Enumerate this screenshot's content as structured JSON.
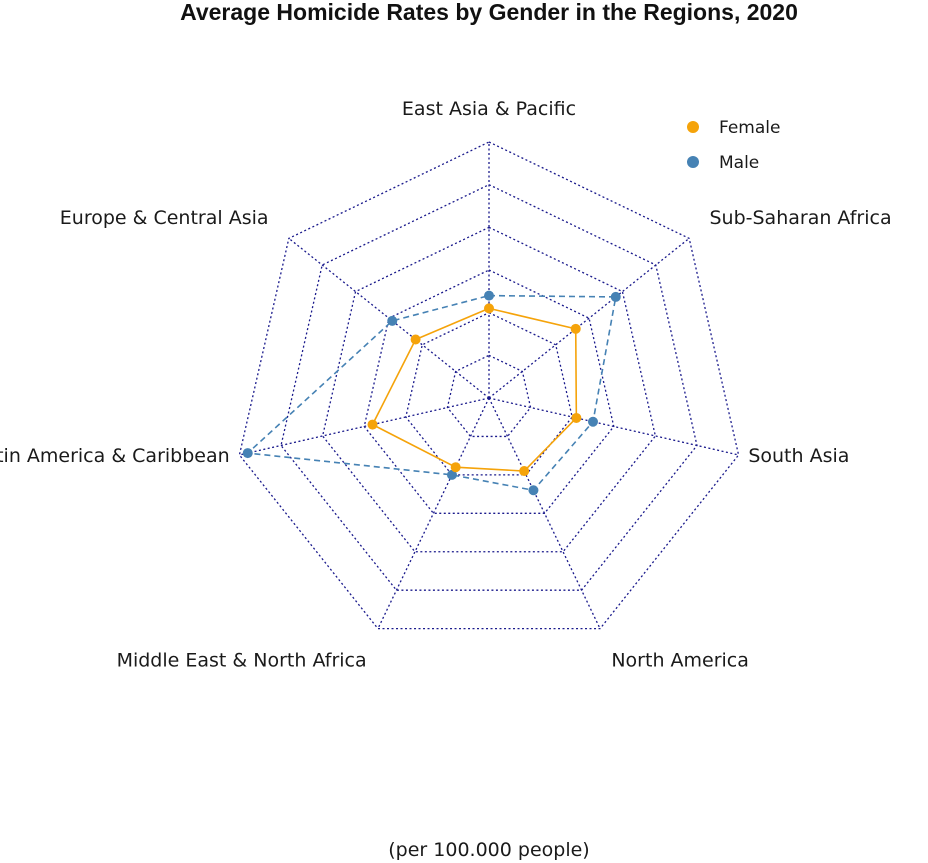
{
  "chart_data": {
    "type": "radar",
    "title": "Average Homicide Rates by Gender in the Regions, 2020",
    "footer": "(per 100.000 people)",
    "axes": [
      "East Asia & Pacific",
      "Sub-Saharan Africa",
      "South Asia",
      "North America",
      "Middle East & North Africa",
      "Latin America & Caribbean",
      "Europe & Central Asia"
    ],
    "rlim": [
      0,
      60
    ],
    "grid_levels": [
      10,
      20,
      30,
      40,
      50,
      60
    ],
    "series": [
      {
        "name": "Female",
        "color": "#f5a30a",
        "line": "solid",
        "values": [
          21,
          26,
          21,
          19,
          18,
          28,
          22
        ]
      },
      {
        "name": "Male",
        "color": "#4682b4",
        "line": "dashed",
        "values": [
          24,
          38,
          25,
          24,
          20,
          58,
          29
        ]
      }
    ],
    "grid_color": "#1a1a8c",
    "legend": [
      "Female",
      "Male"
    ]
  }
}
